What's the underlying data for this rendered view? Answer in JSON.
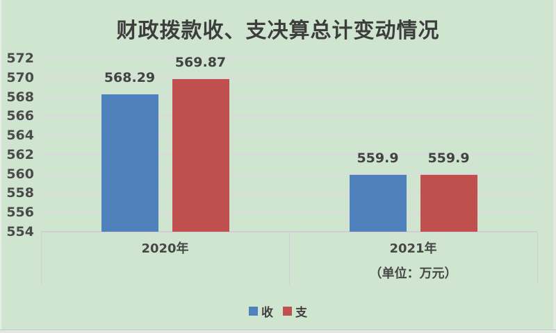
{
  "title": "财政拨款收、支决算总计变动情况",
  "colors": {
    "background": "#cfe5d0",
    "bar_blue": "#4f81bd",
    "bar_red": "#c0504d",
    "gridline": "#dcd8de",
    "axis_line": "#d2ccd4",
    "text": "#3d3d3d"
  },
  "legend": {
    "items": [
      {
        "label": "收",
        "color": "#4f81bd"
      },
      {
        "label": "支",
        "color": "#c0504d"
      }
    ]
  },
  "unit_note": "（单位：万元）",
  "chart_data": {
    "type": "bar",
    "title": "财政拨款收、支决算总计变动情况",
    "categories": [
      "2020年",
      "2021年"
    ],
    "series": [
      {
        "name": "收",
        "color": "#4f81bd",
        "values": [
          568.29,
          559.9
        ],
        "labels": [
          "568.29",
          "559.9"
        ]
      },
      {
        "name": "支",
        "color": "#c0504d",
        "values": [
          569.87,
          559.9
        ],
        "labels": [
          "569.87",
          "559.9"
        ]
      }
    ],
    "ylabel": "",
    "xlabel": "",
    "ylim": [
      554,
      572
    ],
    "ytick_step": 2,
    "yticks": [
      "572",
      "570",
      "568",
      "566",
      "564",
      "562",
      "560",
      "558",
      "556",
      "554"
    ],
    "grid": "horizontal",
    "legend_position": "bottom",
    "unit_note": "（单位：万元）",
    "unit_note_under_category": "2021年"
  }
}
